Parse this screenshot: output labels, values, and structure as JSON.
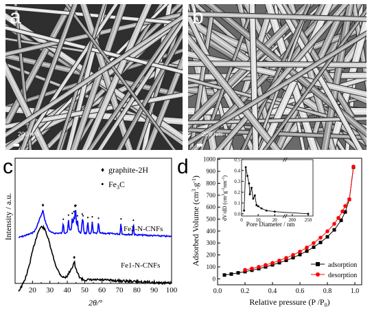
{
  "panels": {
    "a": {
      "letter": "a",
      "scalebar_label": "200 nm"
    },
    "b": {
      "letter": "b",
      "scalebar_label": "200 nm"
    },
    "c": {
      "letter": "c"
    },
    "d": {
      "letter": "d"
    }
  },
  "chart_data": [
    {
      "id": "xrd",
      "type": "line",
      "xlabel": "2θ/°",
      "ylabel": "Intensity / a.u.",
      "xlim": [
        10,
        100
      ],
      "xticks": [
        20,
        30,
        40,
        50,
        60,
        70,
        80,
        90,
        100
      ],
      "legend": [
        {
          "marker": "♦",
          "label": "graphite-2H"
        },
        {
          "marker": "•",
          "label": "Fe3C",
          "label_main": "Fe",
          "label_sub": "3",
          "label_tail": "C"
        }
      ],
      "series": [
        {
          "name": "Fe2-N-CNFs",
          "color": "#0000ff",
          "peaks_graphite": [
            26.0,
            44.5
          ],
          "peaks_fe3c": [
            37.7,
            40.7,
            42.9,
            43.8,
            44.6,
            45.0,
            45.9,
            48.6,
            49.1,
            51.8,
            54.4,
            58.0,
            70.9,
            78.0
          ]
        },
        {
          "name": "Fe1-N-CNFs",
          "color": "#000000",
          "peaks_graphite": [
            44.0
          ]
        }
      ]
    },
    {
      "id": "isotherm",
      "type": "scatter",
      "xlabel": "Relative pressure (P /P0)",
      "xlabel_main": "Relative pressure (P /P",
      "xlabel_sub": "0",
      "xlabel_tail": ")",
      "ylabel": "Adsorbed Volume (cm3.g-1)",
      "ylabel_parts": [
        "Adsorbed Volume (cm",
        "3",
        ".g",
        "-1",
        ")"
      ],
      "xlim": [
        0.0,
        1.05
      ],
      "ylim": [
        -50,
        1010
      ],
      "xticks": [
        0.0,
        0.2,
        0.4,
        0.6,
        0.8,
        1.0
      ],
      "xtick_labels": [
        "0.0",
        "0.2",
        "0.4",
        "0.6",
        "0.8",
        "1.0"
      ],
      "yticks": [
        0,
        100,
        200,
        300,
        400,
        500,
        600,
        700,
        800,
        900,
        1000
      ],
      "legend_position": "bottom-right",
      "series": [
        {
          "name": "adsorption",
          "color": "#000000",
          "marker": "square",
          "x": [
            0.05,
            0.1,
            0.15,
            0.2,
            0.25,
            0.3,
            0.35,
            0.4,
            0.45,
            0.5,
            0.55,
            0.6,
            0.65,
            0.7,
            0.75,
            0.8,
            0.85,
            0.9,
            0.93,
            0.96,
            0.99
          ],
          "y": [
            32,
            40,
            50,
            60,
            72,
            85,
            100,
            117,
            135,
            155,
            177,
            203,
            232,
            265,
            305,
            352,
            410,
            490,
            560,
            665,
            935
          ]
        },
        {
          "name": "desorption",
          "color": "#ff0000",
          "marker": "circle",
          "x": [
            0.2,
            0.25,
            0.3,
            0.35,
            0.4,
            0.45,
            0.5,
            0.55,
            0.6,
            0.65,
            0.7,
            0.75,
            0.8,
            0.85,
            0.88,
            0.91,
            0.93,
            0.96,
            0.99
          ],
          "y": [
            75,
            86,
            100,
            116,
            133,
            153,
            175,
            200,
            228,
            262,
            300,
            345,
            398,
            460,
            510,
            565,
            610,
            665,
            940
          ]
        }
      ],
      "inset": {
        "xlabel": "Pore Diameter / nm",
        "ylabel": "dV/dD (cm3g-1nm-1)",
        "ylabel_parts": [
          "dV/dD (cm",
          "3",
          "g",
          "-1",
          "nm",
          "-1",
          ")"
        ],
        "xlim": [
          0,
          265
        ],
        "ylim": [
          -0.02,
          0.5
        ],
        "xticks": [
          0,
          10,
          20,
          200,
          250
        ],
        "yticks": [
          0.0,
          0.1,
          0.2,
          0.3,
          0.4,
          0.5
        ],
        "ytick_labels": [
          "0.0",
          "0.1",
          "0.2",
          "0.3",
          "0.4",
          "0.5"
        ],
        "series": [
          {
            "name": "pore-distribution",
            "color": "#000000",
            "x": [
              1.5,
              2.5,
              3.5,
              4.5,
              5.0,
              6.0,
              7.0,
              8.0,
              9.0,
              10.0,
              12.0,
              15.0,
              20.0,
              250.0
            ],
            "y": [
              0.03,
              0.43,
              0.35,
              0.28,
              0.18,
              0.24,
              0.14,
              0.17,
              0.08,
              0.07,
              0.05,
              0.03,
              0.02,
              0.0
            ]
          }
        ]
      }
    }
  ]
}
